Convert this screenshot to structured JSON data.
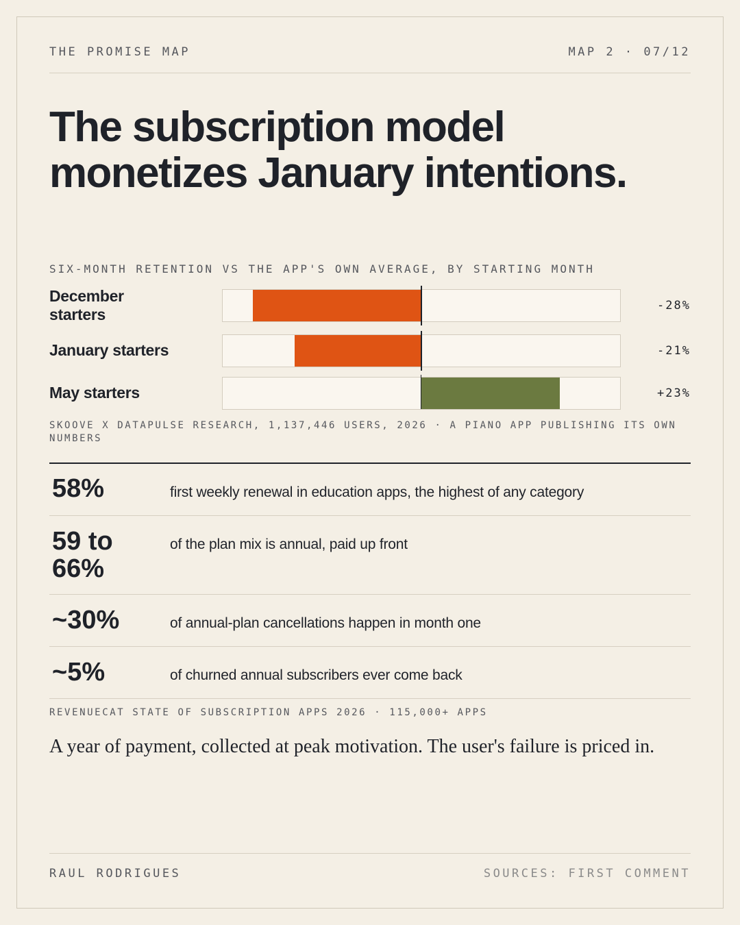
{
  "header": {
    "series_title": "THE PROMISE MAP",
    "map_index": "MAP 2 · 07/12"
  },
  "headline": "The subscription model monetizes January intentions.",
  "chart_data": {
    "type": "bar",
    "orientation": "horizontal",
    "title": "SIX-MONTH RETENTION VS THE APP'S OWN AVERAGE, BY STARTING MONTH",
    "categories": [
      "December starters",
      "January starters",
      "May starters"
    ],
    "values": [
      -28,
      -21,
      23
    ],
    "value_labels": [
      "-28%",
      "-21%",
      "+23%"
    ],
    "xlim": [
      -33,
      33
    ],
    "baseline": 0,
    "colors": {
      "negative": "#df5414",
      "positive": "#6b7a40"
    },
    "source": "SKOOVE X DATAPULSE RESEARCH, 1,137,446 USERS, 2026 · A PIANO APP PUBLISHING ITS OWN NUMBERS"
  },
  "stats": [
    {
      "value": "58%",
      "text": "first weekly renewal in education apps, the highest of any category"
    },
    {
      "value": "59 to 66%",
      "text": "of the plan mix is annual, paid up front"
    },
    {
      "value": "~30%",
      "text": "of annual-plan cancellations happen in month one"
    },
    {
      "value": "~5%",
      "text": "of churned annual subscribers ever come back"
    }
  ],
  "stats_source": "REVENUECAT STATE OF SUBSCRIPTION APPS 2026 · 115,000+ APPS",
  "closing": "A year of payment, collected at peak motivation. The user's failure is priced in.",
  "footer": {
    "author": "RAUL RODRIGUES",
    "sources_note": "SOURCES: FIRST COMMENT"
  }
}
